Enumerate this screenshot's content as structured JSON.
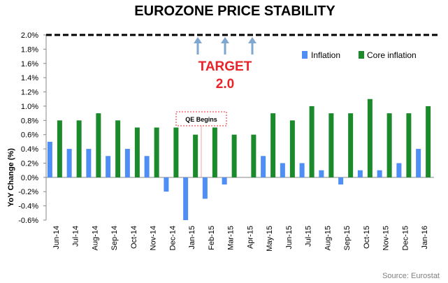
{
  "chart_data": {
    "type": "bar",
    "title": "EUROZONE PRICE STABILITY",
    "ylabel": "YoY Change (%)",
    "xlabel": "",
    "ylim": [
      -0.6,
      2.0
    ],
    "yticks": [
      -0.6,
      -0.4,
      -0.2,
      0.0,
      0.2,
      0.4,
      0.6,
      0.8,
      1.0,
      1.2,
      1.4,
      1.6,
      1.8,
      2.0
    ],
    "ytick_labels": [
      "-0.6%",
      "-0.4%",
      "-0.2%",
      "0.0%",
      "0.2%",
      "0.4%",
      "0.6%",
      "0.8%",
      "1.0%",
      "1.2%",
      "1.4%",
      "1.6%",
      "1.8%",
      "2.0%"
    ],
    "categories": [
      "Jun-14",
      "Jul-14",
      "Aug-14",
      "Sep-14",
      "Oct-14",
      "Nov-14",
      "Dec-14",
      "Jan-15",
      "Feb-15",
      "Mar-15",
      "Apr-15",
      "May-15",
      "Jun-15",
      "Jul-15",
      "Aug-15",
      "Sep-15",
      "Oct-15",
      "Nov-15",
      "Dec-15",
      "Jan-16"
    ],
    "series": [
      {
        "name": "Inflation",
        "color": "#4f8ef5",
        "values": [
          0.5,
          0.4,
          0.4,
          0.3,
          0.4,
          0.3,
          -0.2,
          -0.6,
          -0.3,
          -0.1,
          0.0,
          0.3,
          0.2,
          0.2,
          0.1,
          -0.1,
          0.1,
          0.1,
          0.2,
          0.4
        ]
      },
      {
        "name": "Core inflation",
        "color": "#1a8a2a",
        "values": [
          0.8,
          0.8,
          0.9,
          0.8,
          0.7,
          0.7,
          0.7,
          0.6,
          0.7,
          0.6,
          0.6,
          0.9,
          0.8,
          1.0,
          0.9,
          0.9,
          1.1,
          0.9,
          0.9,
          1.0
        ]
      }
    ],
    "legend_position": "top-right",
    "target": {
      "value": 2.0,
      "line_label": "TARGET",
      "value_label": "2.0",
      "color": "#e8242a"
    },
    "annotations": [
      {
        "text": "QE Begins",
        "between": [
          "Jan-15",
          "Feb-15"
        ]
      }
    ],
    "source": "Source: Eurostat",
    "colors": {
      "axis": "#888888",
      "target_line": "#000000",
      "arrow": "#7fa7cf",
      "qe_border": "#e8242a",
      "qe_line": "#f4a3a3"
    }
  }
}
